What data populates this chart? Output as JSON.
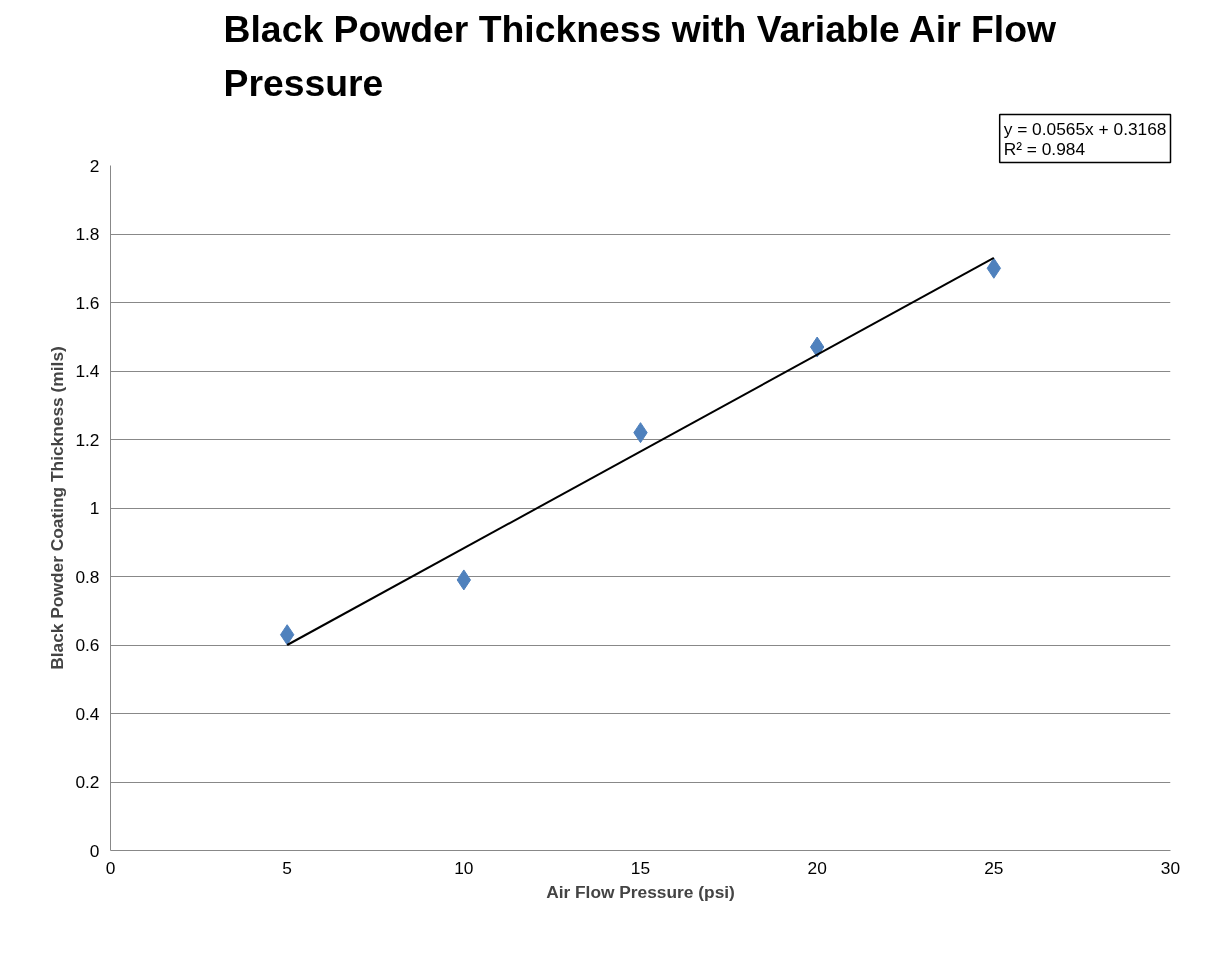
{
  "chart_data": {
    "type": "scatter",
    "title": "Black Powder Thickness with Variable Air Flow Pressure",
    "xlabel": "Air Flow Pressure (psi)",
    "ylabel": "Black Powder Coating Thickness (mils)",
    "x": [
      5,
      10,
      15,
      20,
      25
    ],
    "series": [
      {
        "color": "#4f81bd",
        "marker": "diamond",
        "values": [
          0.63,
          0.79,
          1.22,
          1.47,
          1.7
        ]
      },
      {
        "type": "line",
        "color": "#000000",
        "marker": "none",
        "x": [
          5,
          25
        ],
        "values": [
          0.6,
          1.73
        ]
      }
    ],
    "annotations": [
      "y = 0.0565x + 0.3168",
      "R² = 0.984"
    ],
    "xlim": [
      0,
      30
    ],
    "ylim": [
      0,
      2
    ],
    "xticks": [
      0,
      5,
      10,
      15,
      20,
      25,
      30
    ],
    "yticks": [
      0,
      0.2,
      0.4,
      0.6,
      0.8,
      1,
      1.2,
      1.4,
      1.6,
      1.8,
      2
    ],
    "grid": "y",
    "legend": false
  }
}
